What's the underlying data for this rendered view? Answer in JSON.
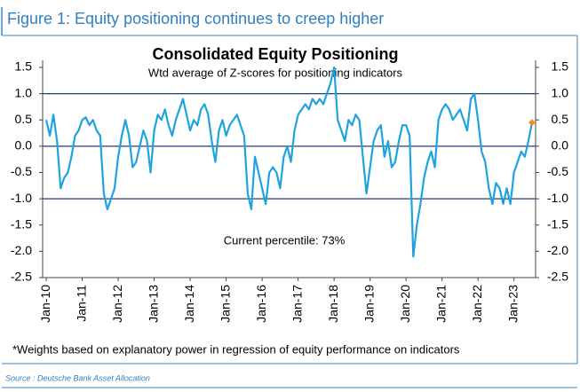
{
  "header": "Figure 1: Equity positioning continues to creep higher",
  "chart_data": {
    "type": "line",
    "title": "Consolidated Equity Positioning",
    "subtitle": "Wtd average of Z-scores for positioning indicators",
    "annotation": "Current percentile: 73%",
    "x": [
      2010.0,
      2010.1,
      2010.2,
      2010.3,
      2010.4,
      2010.5,
      2010.6,
      2010.7,
      2010.8,
      2010.9,
      2011.0,
      2011.1,
      2011.2,
      2011.3,
      2011.4,
      2011.5,
      2011.6,
      2011.7,
      2011.8,
      2011.9,
      2012.0,
      2012.1,
      2012.2,
      2012.3,
      2012.4,
      2012.5,
      2012.6,
      2012.7,
      2012.8,
      2012.9,
      2013.0,
      2013.1,
      2013.2,
      2013.3,
      2013.4,
      2013.5,
      2013.6,
      2013.7,
      2013.8,
      2013.9,
      2014.0,
      2014.1,
      2014.2,
      2014.3,
      2014.4,
      2014.5,
      2014.6,
      2014.7,
      2014.8,
      2014.9,
      2015.0,
      2015.1,
      2015.2,
      2015.3,
      2015.4,
      2015.5,
      2015.6,
      2015.7,
      2015.8,
      2015.9,
      2016.0,
      2016.1,
      2016.2,
      2016.3,
      2016.4,
      2016.5,
      2016.6,
      2016.7,
      2016.8,
      2016.9,
      2017.0,
      2017.1,
      2017.2,
      2017.3,
      2017.4,
      2017.5,
      2017.6,
      2017.7,
      2017.8,
      2017.9,
      2018.0,
      2018.1,
      2018.2,
      2018.3,
      2018.4,
      2018.5,
      2018.6,
      2018.7,
      2018.8,
      2018.9,
      2019.0,
      2019.1,
      2019.2,
      2019.3,
      2019.4,
      2019.5,
      2019.6,
      2019.7,
      2019.8,
      2019.9,
      2020.0,
      2020.1,
      2020.2,
      2020.3,
      2020.4,
      2020.5,
      2020.6,
      2020.7,
      2020.8,
      2020.9,
      2021.0,
      2021.1,
      2021.2,
      2021.3,
      2021.4,
      2021.5,
      2021.6,
      2021.7,
      2021.8,
      2021.9,
      2022.0,
      2022.1,
      2022.2,
      2022.3,
      2022.4,
      2022.5,
      2022.6,
      2022.7,
      2022.8,
      2022.9,
      2023.0,
      2023.1,
      2023.2,
      2023.3,
      2023.4,
      2023.5
    ],
    "values": [
      0.5,
      0.2,
      0.6,
      0.1,
      -0.8,
      -0.6,
      -0.5,
      -0.2,
      0.2,
      0.3,
      0.5,
      0.55,
      0.4,
      0.5,
      0.3,
      0.2,
      -0.9,
      -1.2,
      -1.0,
      -0.8,
      -0.2,
      0.2,
      0.5,
      0.2,
      -0.4,
      -0.3,
      0.0,
      0.3,
      0.1,
      -0.5,
      0.3,
      0.6,
      0.5,
      0.7,
      0.4,
      0.2,
      0.5,
      0.7,
      0.9,
      0.6,
      0.3,
      0.5,
      0.4,
      0.7,
      0.8,
      0.6,
      0.1,
      -0.3,
      0.3,
      0.5,
      0.2,
      0.4,
      0.5,
      0.6,
      0.4,
      0.2,
      -0.9,
      -1.2,
      -0.2,
      -0.5,
      -0.8,
      -1.1,
      -0.5,
      -0.4,
      -0.5,
      -0.8,
      -0.2,
      0.0,
      -0.3,
      0.3,
      0.6,
      0.7,
      0.8,
      0.7,
      0.9,
      0.8,
      0.9,
      0.8,
      1.0,
      1.2,
      1.5,
      0.5,
      0.3,
      0.1,
      0.5,
      0.4,
      0.6,
      0.5,
      -0.2,
      -0.9,
      -0.4,
      0.1,
      0.3,
      0.4,
      -0.2,
      0.1,
      -0.4,
      -0.3,
      0.1,
      0.4,
      0.4,
      0.2,
      -2.1,
      -1.5,
      -1.1,
      -0.6,
      -0.3,
      -0.1,
      -0.4,
      0.5,
      0.7,
      0.8,
      0.7,
      0.5,
      0.6,
      0.7,
      0.5,
      0.3,
      0.9,
      1.0,
      0.5,
      -0.1,
      -0.3,
      -0.8,
      -1.1,
      -0.7,
      -0.8,
      -1.1,
      -0.8,
      -1.1,
      -0.5,
      -0.3,
      -0.1,
      -0.2,
      0.1,
      0.45
    ],
    "color": "#1fa3e0",
    "last_marker_color": "#f28e2b",
    "xlim": [
      2009.9,
      2023.6
    ],
    "xticks": [
      {
        "value": 2010,
        "label": "Jan-10"
      },
      {
        "value": 2011,
        "label": "Jan-11"
      },
      {
        "value": 2012,
        "label": "Jan-12"
      },
      {
        "value": 2013,
        "label": "Jan-13"
      },
      {
        "value": 2014,
        "label": "Jan-14"
      },
      {
        "value": 2015,
        "label": "Jan-15"
      },
      {
        "value": 2016,
        "label": "Jan-16"
      },
      {
        "value": 2017,
        "label": "Jan-17"
      },
      {
        "value": 2018,
        "label": "Jan-18"
      },
      {
        "value": 2019,
        "label": "Jan-19"
      },
      {
        "value": 2020,
        "label": "Jan-20"
      },
      {
        "value": 2021,
        "label": "Jan-21"
      },
      {
        "value": 2022,
        "label": "Jan-22"
      },
      {
        "value": 2023,
        "label": "Jan-23"
      }
    ],
    "ylim": [
      -2.5,
      1.5
    ],
    "yticks": [
      1.5,
      {
        "value": 1,
        "label": "1.0"
      },
      0.5,
      {
        "value": 0,
        "label": "0.0"
      },
      -0.5,
      {
        "value": -1,
        "label": "-1.0"
      },
      -1.5,
      {
        "value": -2,
        "label": "-2.0"
      },
      -2.5
    ],
    "y2lim": [
      -2.5,
      1.5
    ],
    "y2ticks": [
      1.5,
      {
        "value": 1,
        "label": "1.0"
      },
      0.5,
      {
        "value": 0,
        "label": "0.0"
      },
      -0.5,
      {
        "value": -1,
        "label": "-1.0"
      },
      -1.5,
      {
        "value": -2,
        "label": "-2.0"
      },
      -2.5
    ],
    "hlines": [
      1,
      0,
      -1
    ],
    "hline_color": "#1f3d7a"
  },
  "footnote": "*Weights based on explanatory power in regression of equity performance on indicators",
  "source": "Source : Deutsche Bank Asset Allocation"
}
